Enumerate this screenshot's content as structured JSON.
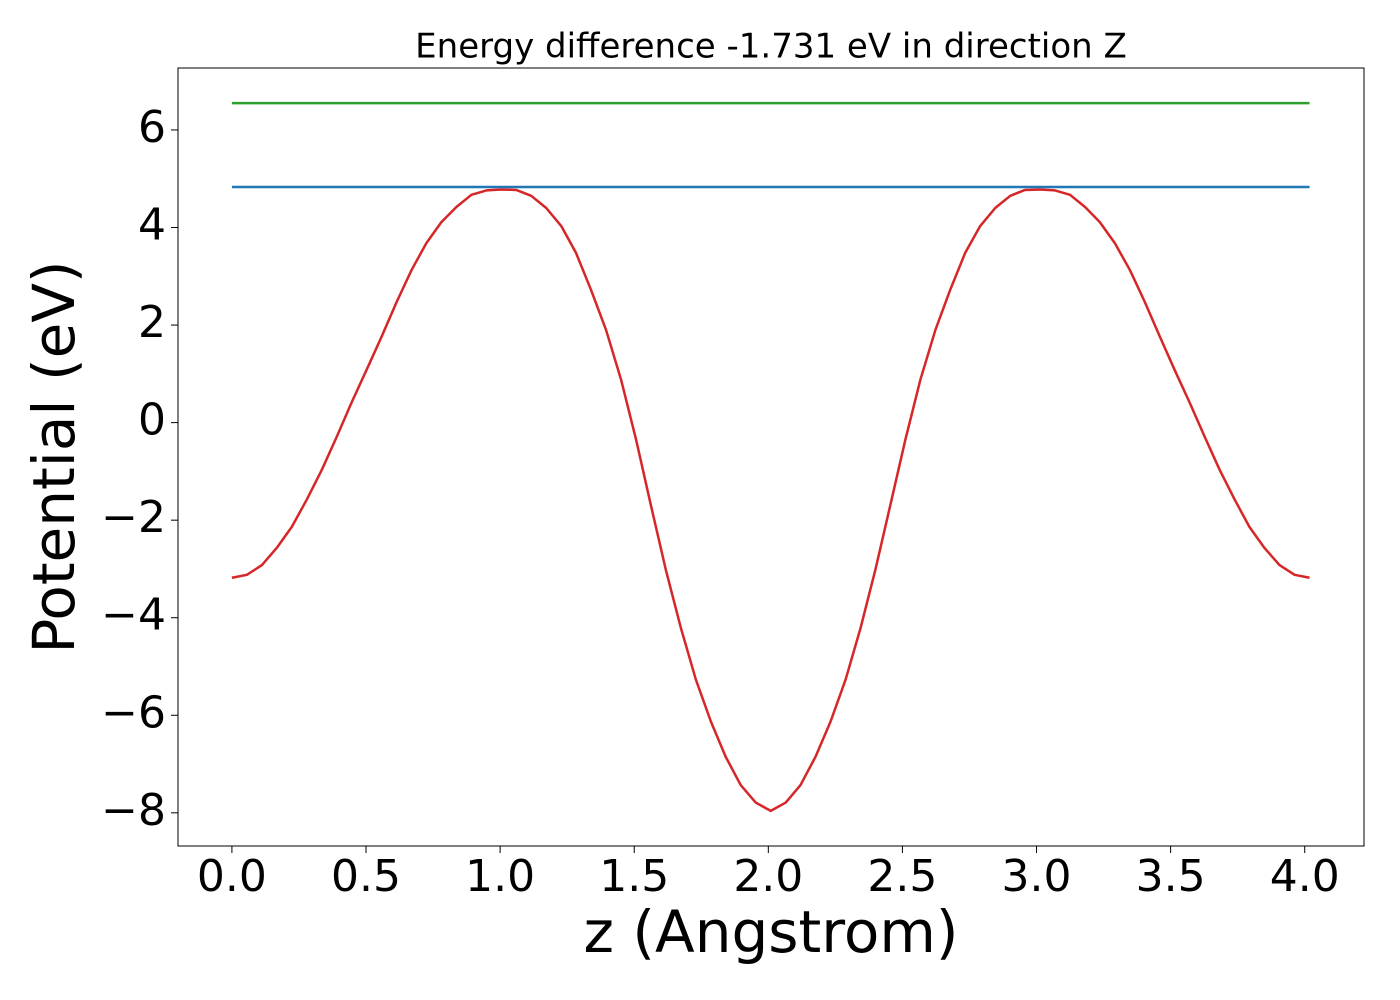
{
  "chart_data": {
    "type": "line",
    "title": "Energy difference -1.731 eV in direction Z",
    "x_label": "z (Angstrom)",
    "y_label": "Potential (eV)",
    "x": [
      0,
      0.056,
      0.112,
      0.167,
      0.223,
      0.279,
      0.335,
      0.391,
      0.446,
      0.502,
      0.558,
      0.614,
      0.67,
      0.725,
      0.781,
      0.837,
      0.893,
      0.949,
      1.004,
      1.06,
      1.116,
      1.172,
      1.228,
      1.283,
      1.339,
      1.395,
      1.451,
      1.507,
      1.562,
      1.618,
      1.674,
      1.73,
      1.786,
      1.841,
      1.897,
      1.953,
      2.009,
      2.065,
      2.12,
      2.176,
      2.232,
      2.288,
      2.344,
      2.399,
      2.455,
      2.511,
      2.567,
      2.623,
      2.678,
      2.734,
      2.79,
      2.846,
      2.902,
      2.957,
      3.013,
      3.069,
      3.125,
      3.181,
      3.236,
      3.292,
      3.348,
      3.404,
      3.46,
      3.515,
      3.571,
      3.627,
      3.683,
      3.739,
      3.794,
      3.85,
      3.906,
      3.962,
      4.018
    ],
    "series": [
      {
        "color": "#d62728",
        "values": [
          -3.18,
          -3.12,
          -2.92,
          -2.57,
          -2.14,
          -1.58,
          -0.97,
          -0.29,
          0.41,
          1.08,
          1.76,
          2.47,
          3.13,
          3.68,
          4.11,
          4.42,
          4.67,
          4.76,
          4.78,
          4.77,
          4.65,
          4.4,
          4.03,
          3.48,
          2.72,
          1.9,
          0.88,
          -0.35,
          -1.69,
          -3.02,
          -4.21,
          -5.27,
          -6.13,
          -6.85,
          -7.43,
          -7.79,
          -7.96,
          -7.79,
          -7.43,
          -6.85,
          -6.13,
          -5.27,
          -4.21,
          -3.02,
          -1.69,
          -0.35,
          0.88,
          1.9,
          2.72,
          3.48,
          4.03,
          4.4,
          4.65,
          4.77,
          4.78,
          4.76,
          4.67,
          4.42,
          4.11,
          3.68,
          3.13,
          2.47,
          1.76,
          1.08,
          0.41,
          -0.29,
          -0.97,
          -1.58,
          -2.14,
          -2.57,
          -2.92,
          -3.12,
          -3.18
        ]
      },
      {
        "color": "#1f77b4",
        "x": [
          0,
          4.018
        ],
        "values": [
          4.83,
          4.83
        ]
      },
      {
        "color": "#2ca02c",
        "x": [
          0,
          4.018
        ],
        "values": [
          6.55,
          6.55
        ]
      }
    ],
    "xlim": [
      -0.201,
      4.221
    ],
    "ylim": [
      -8.68,
      7.27
    ],
    "xticks": [
      {
        "value": 0,
        "label": "0.0"
      },
      {
        "value": 0.5,
        "label": "0.5"
      },
      {
        "value": 1,
        "label": "1.0"
      },
      {
        "value": 1.5,
        "label": "1.5"
      },
      {
        "value": 2,
        "label": "2.0"
      },
      {
        "value": 2.5,
        "label": "2.5"
      },
      {
        "value": 3,
        "label": "3.0"
      },
      {
        "value": 3.5,
        "label": "3.5"
      },
      {
        "value": 4,
        "label": "4.0"
      }
    ],
    "yticks": [
      {
        "value": -8,
        "label": "−8"
      },
      {
        "value": -6,
        "label": "−6"
      },
      {
        "value": -4,
        "label": "−4"
      },
      {
        "value": -2,
        "label": "−2"
      },
      0,
      2,
      4,
      6
    ],
    "grid": false
  }
}
